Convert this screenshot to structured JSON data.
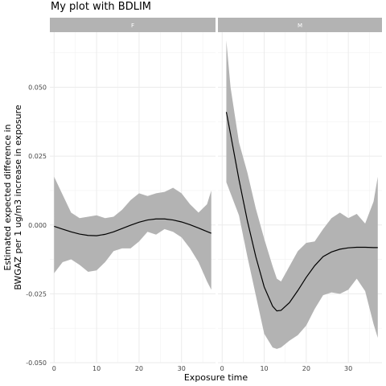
{
  "title": "My plot with BDLIM",
  "chart_data": {
    "type": "line",
    "title": "My plot with BDLIM",
    "xlabel": "Exposure time",
    "ylabel_lines": [
      "Estimated expected difference in",
      "BWGAZ per 1 ug/m3 increase in exposure"
    ],
    "xlim": [
      -1,
      38
    ],
    "ylim": [
      -0.05,
      0.07
    ],
    "xticks": [
      0,
      10,
      20,
      30
    ],
    "yticks": [
      -0.05,
      -0.025,
      0.0,
      0.025,
      0.05
    ],
    "ytick_labels": [
      "-0.050",
      "-0.025",
      "0.000",
      "0.025",
      "0.050"
    ],
    "colors": {
      "ribbon": "#b3b3b3",
      "line": "#000000",
      "strip": "#b3b3b3"
    },
    "panels": [
      {
        "label": "F",
        "x": [
          0,
          2,
          4,
          6,
          8,
          10,
          12,
          14,
          16,
          18,
          20,
          22,
          24,
          26,
          28,
          30,
          32,
          34,
          36,
          37
        ],
        "mean": [
          -0.0005,
          -0.0015,
          -0.0025,
          -0.0033,
          -0.0038,
          -0.0039,
          -0.0034,
          -0.0025,
          -0.0013,
          -0.0001,
          0.001,
          0.0018,
          0.0022,
          0.0022,
          0.0018,
          0.0011,
          0.0001,
          -0.0011,
          -0.0024,
          -0.003
        ],
        "upper": [
          0.0175,
          0.011,
          0.0045,
          0.0025,
          0.003,
          0.0035,
          0.0025,
          0.003,
          0.0055,
          0.009,
          0.0115,
          0.0105,
          0.0115,
          0.012,
          0.0135,
          0.0115,
          0.0075,
          0.0045,
          0.0075,
          0.0125
        ],
        "lower": [
          -0.0175,
          -0.0135,
          -0.0125,
          -0.0145,
          -0.017,
          -0.0165,
          -0.0135,
          -0.0095,
          -0.0085,
          -0.0085,
          -0.006,
          -0.0025,
          -0.0035,
          -0.0015,
          -0.0025,
          -0.0045,
          -0.0085,
          -0.0135,
          -0.0205,
          -0.0235
        ]
      },
      {
        "label": "M",
        "x": [
          1,
          2,
          4,
          6,
          8,
          10,
          12,
          13,
          14,
          16,
          18,
          20,
          22,
          24,
          26,
          28,
          30,
          32,
          34,
          36,
          37
        ],
        "mean": [
          0.041,
          0.033,
          0.0165,
          0.0015,
          -0.0115,
          -0.0225,
          -0.0295,
          -0.0312,
          -0.031,
          -0.0282,
          -0.0238,
          -0.019,
          -0.0148,
          -0.0115,
          -0.0098,
          -0.0088,
          -0.0083,
          -0.0081,
          -0.0081,
          -0.0082,
          -0.0082
        ],
        "upper": [
          0.067,
          0.05,
          0.03,
          0.019,
          0.006,
          -0.005,
          -0.015,
          -0.0195,
          -0.0205,
          -0.015,
          -0.0095,
          -0.0065,
          -0.006,
          -0.0015,
          0.0025,
          0.0045,
          0.0025,
          0.004,
          0.0005,
          0.0085,
          0.0175
        ],
        "lower": [
          0.0155,
          0.0115,
          0.0035,
          -0.0115,
          -0.0255,
          -0.0395,
          -0.0445,
          -0.045,
          -0.0445,
          -0.042,
          -0.04,
          -0.0365,
          -0.0305,
          -0.0255,
          -0.0245,
          -0.025,
          -0.0235,
          -0.0195,
          -0.024,
          -0.036,
          -0.041
        ]
      }
    ]
  }
}
